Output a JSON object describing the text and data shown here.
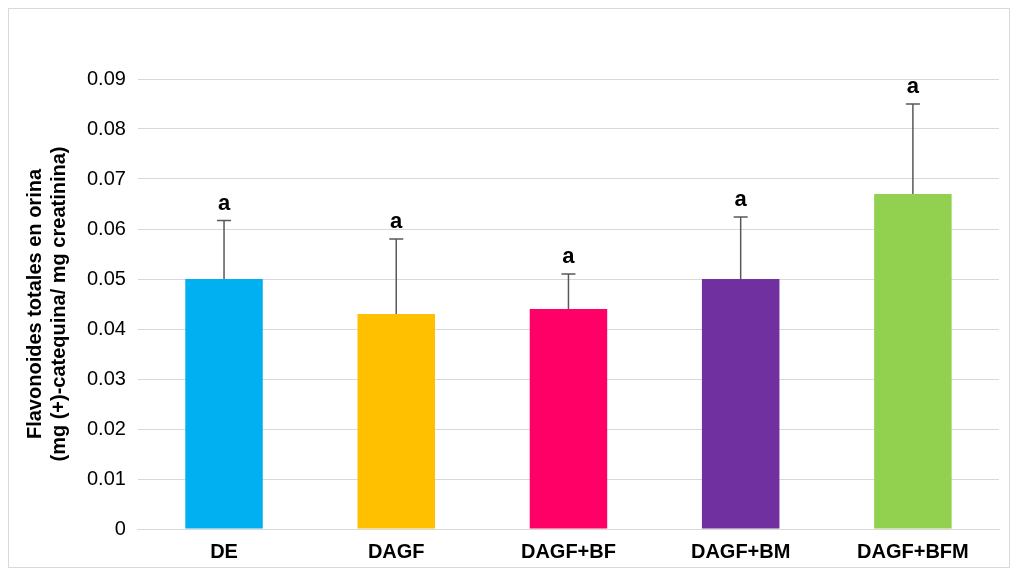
{
  "chart_data": {
    "type": "bar",
    "ylabel": "Flavonoides totales en orina\n(mg (+)-catequina/ mg creatinina)",
    "categories": [
      "DE",
      "DAGF",
      "DAGF+BF",
      "DAGF+BM",
      "DAGF+BFM"
    ],
    "values": [
      0.05,
      0.043,
      0.044,
      0.05,
      0.067
    ],
    "colors": [
      "#00b0f0",
      "#ffc000",
      "#ff0066",
      "#7030a0",
      "#92d050"
    ],
    "errors": [
      [
        0.05,
        0.0617
      ],
      [
        0.043,
        0.058
      ],
      [
        0.044,
        0.051
      ],
      [
        0.05,
        0.0624
      ],
      [
        0.067,
        0.085
      ]
    ],
    "ylim": [
      0,
      0.09
    ],
    "yticks": [
      0,
      0.01,
      0.02,
      0.03,
      0.04,
      0.05,
      0.06,
      0.07,
      0.08,
      0.09
    ],
    "grid": "y",
    "annotations": [
      {
        "text": "a",
        "x": "DE",
        "y": 0.0617
      },
      {
        "text": "a",
        "x": "DAGF",
        "y": 0.058
      },
      {
        "text": "a",
        "x": "DAGF+BF",
        "y": 0.051
      },
      {
        "text": "a",
        "x": "DAGF+BM",
        "y": 0.0624
      },
      {
        "text": "a",
        "x": "DAGF+BFM",
        "y": 0.085
      }
    ]
  }
}
